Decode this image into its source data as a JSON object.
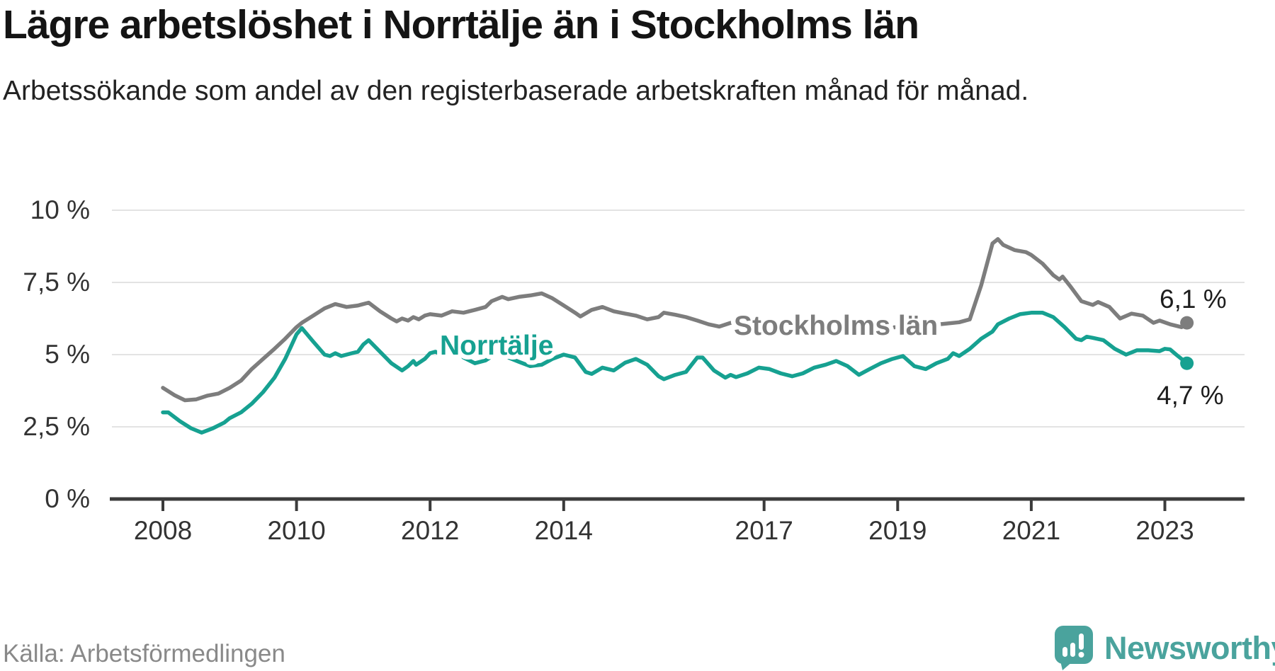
{
  "header": {
    "title": "Lägre arbetslöshet i Norrtälje än i Stockholms län",
    "subtitle": "Arbetssökande som andel av den registerbaserade arbetskraften månad för månad."
  },
  "footer": {
    "source": "Källa: Arbetsförmedlingen",
    "brand": "Newsworthy",
    "logo_icon": "newsworthy-chart-bubble-icon"
  },
  "colors": {
    "norrtalje": "#16a191",
    "stockholm": "#7d7d7d",
    "axis": "#3b3b3b",
    "grid": "#e3e3e3",
    "brand": "#4aa39d"
  },
  "chart_data": {
    "type": "line",
    "unit": "%",
    "x_axis": {
      "tick_labels": [
        "2008",
        "2010",
        "2012",
        "2014",
        "2017",
        "2019",
        "2021",
        "2023"
      ],
      "tick_years": [
        2008,
        2010,
        2012,
        2014,
        2017,
        2019,
        2021,
        2023
      ],
      "range_years": [
        2007.75,
        2023.9
      ],
      "grid": false
    },
    "y_axis": {
      "tick_labels": [
        "0 %",
        "2,5 %",
        "5 %",
        "7,5 %",
        "10 %"
      ],
      "tick_values": [
        0,
        2.5,
        5,
        7.5,
        10
      ],
      "range": [
        0,
        10
      ],
      "grid": true
    },
    "series": [
      {
        "name": "Stockholms län",
        "color": "#7d7d7d",
        "end_label": "6,1 %",
        "end_value": 6.1,
        "points": [
          [
            2008.0,
            3.85
          ],
          [
            2008.17,
            3.6
          ],
          [
            2008.33,
            3.42
          ],
          [
            2008.5,
            3.45
          ],
          [
            2008.67,
            3.58
          ],
          [
            2008.83,
            3.65
          ],
          [
            2009.0,
            3.85
          ],
          [
            2009.17,
            4.1
          ],
          [
            2009.33,
            4.5
          ],
          [
            2009.5,
            4.85
          ],
          [
            2009.67,
            5.2
          ],
          [
            2009.83,
            5.55
          ],
          [
            2010.0,
            5.95
          ],
          [
            2010.08,
            6.1
          ],
          [
            2010.25,
            6.35
          ],
          [
            2010.42,
            6.6
          ],
          [
            2010.58,
            6.75
          ],
          [
            2010.75,
            6.65
          ],
          [
            2010.92,
            6.7
          ],
          [
            2011.08,
            6.8
          ],
          [
            2011.25,
            6.5
          ],
          [
            2011.42,
            6.25
          ],
          [
            2011.5,
            6.15
          ],
          [
            2011.58,
            6.25
          ],
          [
            2011.67,
            6.18
          ],
          [
            2011.75,
            6.3
          ],
          [
            2011.83,
            6.22
          ],
          [
            2011.92,
            6.35
          ],
          [
            2012.0,
            6.4
          ],
          [
            2012.17,
            6.35
          ],
          [
            2012.33,
            6.5
          ],
          [
            2012.5,
            6.45
          ],
          [
            2012.67,
            6.55
          ],
          [
            2012.83,
            6.65
          ],
          [
            2012.92,
            6.85
          ],
          [
            2013.08,
            7.0
          ],
          [
            2013.17,
            6.92
          ],
          [
            2013.33,
            7.0
          ],
          [
            2013.5,
            7.05
          ],
          [
            2013.67,
            7.12
          ],
          [
            2013.83,
            6.95
          ],
          [
            2014.0,
            6.7
          ],
          [
            2014.17,
            6.45
          ],
          [
            2014.25,
            6.32
          ],
          [
            2014.42,
            6.55
          ],
          [
            2014.58,
            6.65
          ],
          [
            2014.75,
            6.5
          ],
          [
            2014.92,
            6.42
          ],
          [
            2015.08,
            6.35
          ],
          [
            2015.25,
            6.22
          ],
          [
            2015.42,
            6.3
          ],
          [
            2015.5,
            6.45
          ],
          [
            2015.67,
            6.38
          ],
          [
            2015.83,
            6.3
          ],
          [
            2016.0,
            6.18
          ],
          [
            2016.17,
            6.05
          ],
          [
            2016.33,
            5.97
          ],
          [
            2016.5,
            6.1
          ],
          [
            2017.0,
            6.03
          ],
          [
            2017.5,
            5.95
          ],
          [
            2018.0,
            5.9
          ],
          [
            2018.5,
            5.9
          ],
          [
            2019.0,
            5.95
          ],
          [
            2019.5,
            6.02
          ],
          [
            2019.92,
            6.12
          ],
          [
            2020.08,
            6.22
          ],
          [
            2020.25,
            7.4
          ],
          [
            2020.42,
            8.85
          ],
          [
            2020.5,
            9.0
          ],
          [
            2020.58,
            8.8
          ],
          [
            2020.75,
            8.62
          ],
          [
            2020.92,
            8.55
          ],
          [
            2021.0,
            8.45
          ],
          [
            2021.17,
            8.15
          ],
          [
            2021.33,
            7.75
          ],
          [
            2021.42,
            7.6
          ],
          [
            2021.47,
            7.7
          ],
          [
            2021.58,
            7.38
          ],
          [
            2021.75,
            6.85
          ],
          [
            2021.92,
            6.72
          ],
          [
            2022.0,
            6.82
          ],
          [
            2022.17,
            6.65
          ],
          [
            2022.33,
            6.25
          ],
          [
            2022.5,
            6.42
          ],
          [
            2022.67,
            6.35
          ],
          [
            2022.83,
            6.1
          ],
          [
            2022.92,
            6.18
          ],
          [
            2023.08,
            6.05
          ],
          [
            2023.25,
            5.95
          ],
          [
            2023.33,
            6.1
          ]
        ]
      },
      {
        "name": "Norrtälje",
        "color": "#16a191",
        "end_label": "4,7 %",
        "end_value": 4.7,
        "points": [
          [
            2008.0,
            3.0
          ],
          [
            2008.08,
            3.0
          ],
          [
            2008.25,
            2.7
          ],
          [
            2008.42,
            2.45
          ],
          [
            2008.58,
            2.3
          ],
          [
            2008.75,
            2.45
          ],
          [
            2008.92,
            2.65
          ],
          [
            2009.0,
            2.8
          ],
          [
            2009.17,
            3.0
          ],
          [
            2009.33,
            3.3
          ],
          [
            2009.5,
            3.7
          ],
          [
            2009.67,
            4.2
          ],
          [
            2009.83,
            4.85
          ],
          [
            2009.92,
            5.3
          ],
          [
            2010.0,
            5.7
          ],
          [
            2010.08,
            5.92
          ],
          [
            2010.25,
            5.45
          ],
          [
            2010.42,
            5.0
          ],
          [
            2010.5,
            4.95
          ],
          [
            2010.58,
            5.05
          ],
          [
            2010.67,
            4.95
          ],
          [
            2010.83,
            5.05
          ],
          [
            2010.92,
            5.1
          ],
          [
            2011.0,
            5.35
          ],
          [
            2011.08,
            5.5
          ],
          [
            2011.25,
            5.1
          ],
          [
            2011.42,
            4.7
          ],
          [
            2011.58,
            4.45
          ],
          [
            2011.67,
            4.6
          ],
          [
            2011.75,
            4.78
          ],
          [
            2011.79,
            4.65
          ],
          [
            2011.92,
            4.85
          ],
          [
            2012.0,
            5.05
          ],
          [
            2012.08,
            5.1
          ],
          [
            2012.17,
            5.0
          ],
          [
            2012.33,
            5.42
          ],
          [
            2012.5,
            4.9
          ],
          [
            2012.67,
            4.7
          ],
          [
            2012.83,
            4.8
          ],
          [
            2013.0,
            5.05
          ],
          [
            2013.17,
            4.9
          ],
          [
            2013.33,
            4.75
          ],
          [
            2013.5,
            4.6
          ],
          [
            2013.67,
            4.65
          ],
          [
            2013.83,
            4.85
          ],
          [
            2014.0,
            5.0
          ],
          [
            2014.17,
            4.9
          ],
          [
            2014.33,
            4.4
          ],
          [
            2014.42,
            4.33
          ],
          [
            2014.58,
            4.55
          ],
          [
            2014.75,
            4.45
          ],
          [
            2014.92,
            4.72
          ],
          [
            2015.08,
            4.85
          ],
          [
            2015.25,
            4.65
          ],
          [
            2015.42,
            4.25
          ],
          [
            2015.5,
            4.15
          ],
          [
            2015.67,
            4.3
          ],
          [
            2015.83,
            4.4
          ],
          [
            2016.0,
            4.9
          ],
          [
            2016.08,
            4.9
          ],
          [
            2016.25,
            4.45
          ],
          [
            2016.42,
            4.2
          ],
          [
            2016.5,
            4.3
          ],
          [
            2016.58,
            4.22
          ],
          [
            2016.75,
            4.35
          ],
          [
            2016.92,
            4.55
          ],
          [
            2017.08,
            4.5
          ],
          [
            2017.25,
            4.35
          ],
          [
            2017.42,
            4.25
          ],
          [
            2017.58,
            4.35
          ],
          [
            2017.75,
            4.55
          ],
          [
            2017.92,
            4.65
          ],
          [
            2018.08,
            4.78
          ],
          [
            2018.25,
            4.6
          ],
          [
            2018.42,
            4.3
          ],
          [
            2018.58,
            4.5
          ],
          [
            2018.75,
            4.7
          ],
          [
            2018.92,
            4.85
          ],
          [
            2019.08,
            4.95
          ],
          [
            2019.25,
            4.6
          ],
          [
            2019.42,
            4.5
          ],
          [
            2019.58,
            4.7
          ],
          [
            2019.75,
            4.85
          ],
          [
            2019.83,
            5.05
          ],
          [
            2019.92,
            4.95
          ],
          [
            2020.08,
            5.2
          ],
          [
            2020.25,
            5.55
          ],
          [
            2020.42,
            5.8
          ],
          [
            2020.5,
            6.05
          ],
          [
            2020.67,
            6.25
          ],
          [
            2020.83,
            6.4
          ],
          [
            2021.0,
            6.45
          ],
          [
            2021.17,
            6.45
          ],
          [
            2021.33,
            6.3
          ],
          [
            2021.5,
            5.95
          ],
          [
            2021.67,
            5.55
          ],
          [
            2021.75,
            5.5
          ],
          [
            2021.83,
            5.62
          ],
          [
            2021.92,
            5.58
          ],
          [
            2022.08,
            5.5
          ],
          [
            2022.25,
            5.2
          ],
          [
            2022.42,
            5.0
          ],
          [
            2022.58,
            5.15
          ],
          [
            2022.75,
            5.15
          ],
          [
            2022.92,
            5.12
          ],
          [
            2023.0,
            5.2
          ],
          [
            2023.08,
            5.18
          ],
          [
            2023.17,
            5.0
          ],
          [
            2023.33,
            4.7
          ]
        ]
      }
    ]
  }
}
